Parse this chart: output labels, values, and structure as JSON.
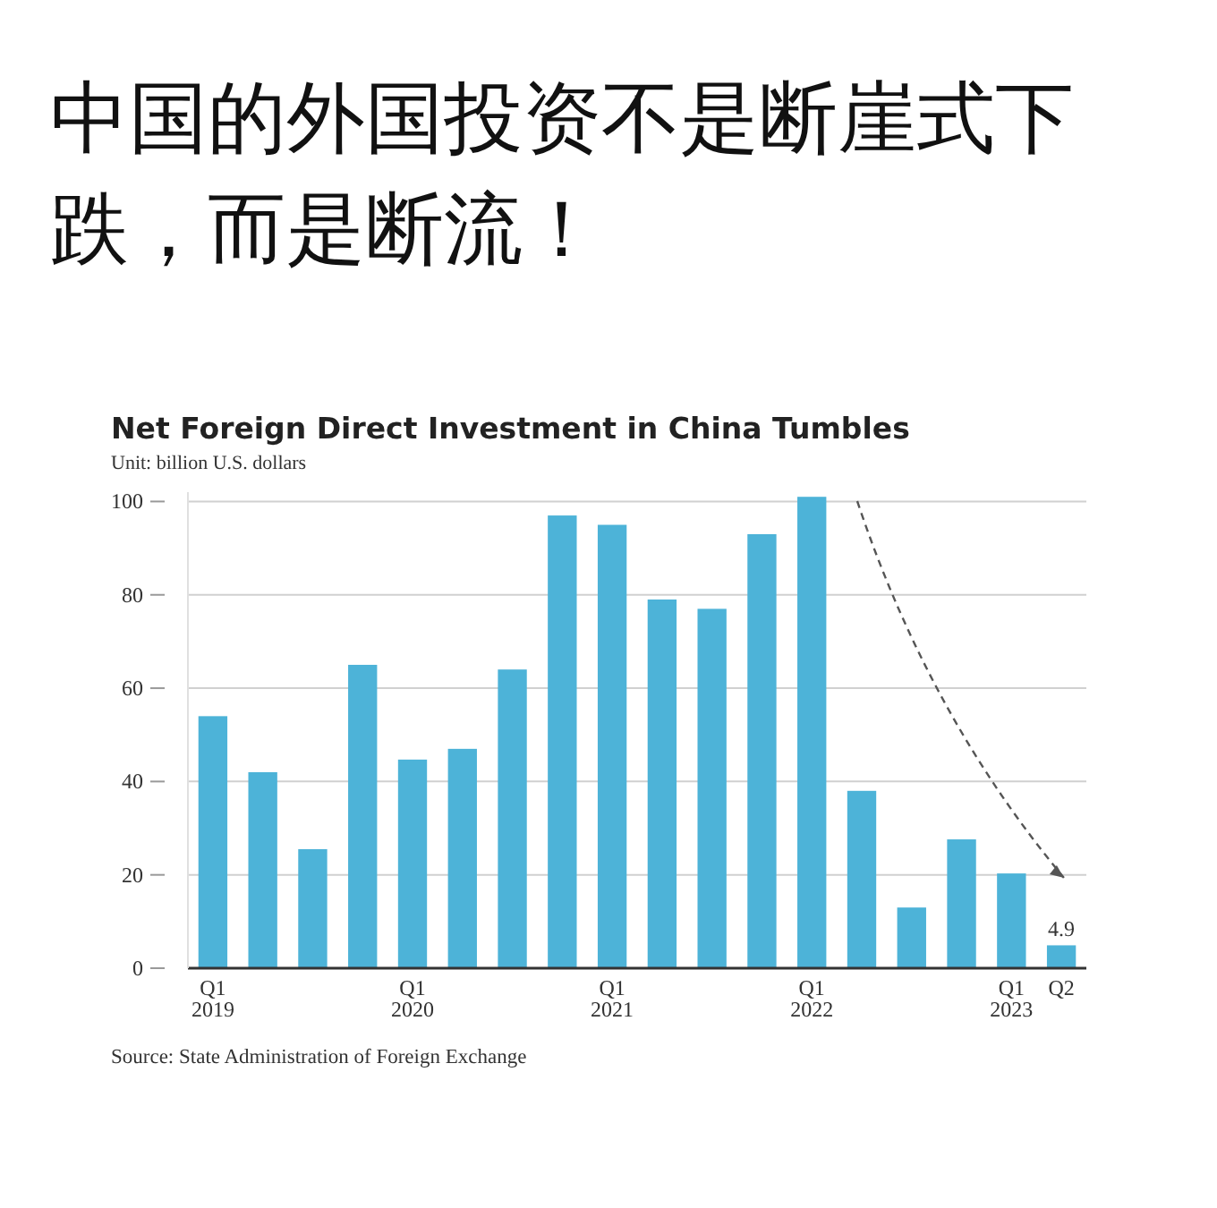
{
  "chart_data": {
    "type": "bar",
    "title": "中国的外国投资不是断崖式下跌，而是断流！",
    "subtitle": "Net Foreign Direct Investment in China Tumbles",
    "ylabel": "Unit: billion U.S. dollars",
    "categories": [
      "Q1\n2019",
      null,
      null,
      null,
      "Q1\n2020",
      null,
      null,
      null,
      "Q1\n2021",
      null,
      null,
      null,
      "Q1\n2022",
      null,
      null,
      null,
      "Q1\n2023",
      "Q2"
    ],
    "values": [
      54,
      42,
      25.5,
      65,
      44.7,
      47,
      64,
      97,
      95,
      79,
      77,
      93,
      101,
      38,
      13,
      27.6,
      20.3,
      4.9
    ],
    "value_labels": [
      null,
      null,
      null,
      null,
      null,
      null,
      null,
      null,
      null,
      null,
      null,
      null,
      null,
      null,
      null,
      null,
      null,
      "4.9"
    ],
    "color": "#4db3d8",
    "ylim": [
      0,
      102
    ],
    "yticks": [
      0,
      20,
      40,
      60,
      80,
      100
    ],
    "grid": "y",
    "annotations": [
      "Source: State Administration of Foreign Exchange"
    ]
  }
}
